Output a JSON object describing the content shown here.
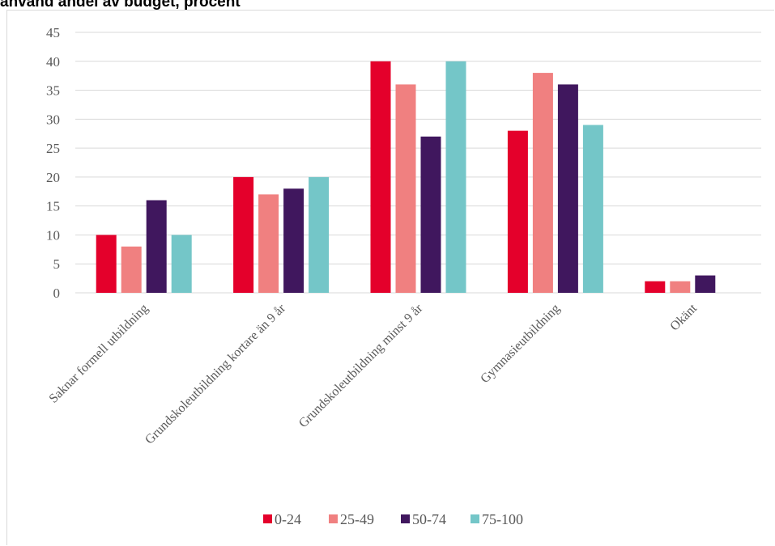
{
  "chart_data": {
    "type": "bar",
    "title": "använd andel av budget, procent",
    "xlabel": "",
    "ylabel": "",
    "ylim": [
      0,
      45
    ],
    "yticks": [
      "0",
      "5",
      "10",
      "15",
      "20",
      "25",
      "30",
      "35",
      "40",
      "45"
    ],
    "grid": true,
    "legend_position": "bottom",
    "categories": [
      "Saknar formell utbildning",
      "Grundskoleutbildning kortare än 9 år",
      "Grundskoleutbildning minst 9 år",
      "Gymnasieutbildning",
      "Okänt"
    ],
    "series": [
      {
        "name": "0-24",
        "color": "#e4002b",
        "values": [
          10,
          20,
          40,
          28,
          2
        ]
      },
      {
        "name": "25-49",
        "color": "#f08080",
        "values": [
          8,
          17,
          36,
          38,
          2
        ]
      },
      {
        "name": "50-74",
        "color": "#40175e",
        "values": [
          16,
          18,
          27,
          36,
          3
        ]
      },
      {
        "name": "75-100",
        "color": "#74c6c8",
        "values": [
          10,
          20,
          40,
          29,
          0
        ]
      }
    ]
  }
}
